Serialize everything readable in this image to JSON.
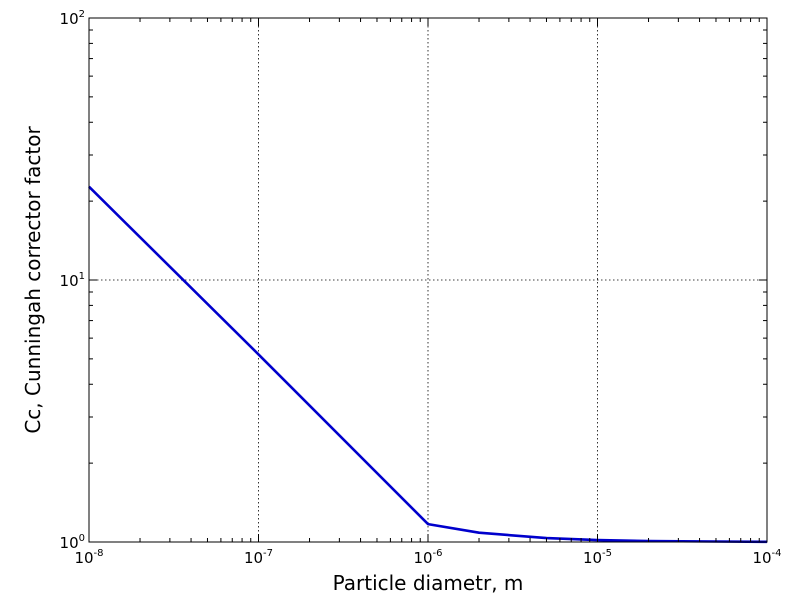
{
  "chart_data": {
    "type": "line",
    "title": "",
    "xlabel": "Particle diametr, m",
    "ylabel": "Cc, Cunningah corrector factor",
    "xscale": "log",
    "yscale": "log",
    "xlim": [
      1e-08,
      0.0001
    ],
    "ylim": [
      1,
      100
    ],
    "grid": true,
    "legend": "none",
    "line_color": "#0000cc",
    "x_ticks": [
      {
        "value": 1e-08,
        "base": "10",
        "exp": "-8"
      },
      {
        "value": 1e-07,
        "base": "10",
        "exp": "-7"
      },
      {
        "value": 1e-06,
        "base": "10",
        "exp": "-6"
      },
      {
        "value": 1e-05,
        "base": "10",
        "exp": "-5"
      },
      {
        "value": 0.0001,
        "base": "10",
        "exp": "-4"
      }
    ],
    "y_ticks": [
      {
        "value": 1,
        "base": "10",
        "exp": "0"
      },
      {
        "value": 10,
        "base": "10",
        "exp": "1"
      },
      {
        "value": 100,
        "base": "10",
        "exp": "2"
      }
    ],
    "series": [
      {
        "x": [
          1e-08,
          1e-07,
          1e-06,
          2e-06,
          5e-06,
          1e-05,
          2e-05,
          5e-05,
          0.0001
        ],
        "y": [
          22.7,
          5.2,
          1.17,
          1.085,
          1.035,
          1.017,
          1.009,
          1.004,
          1.002
        ]
      }
    ]
  }
}
